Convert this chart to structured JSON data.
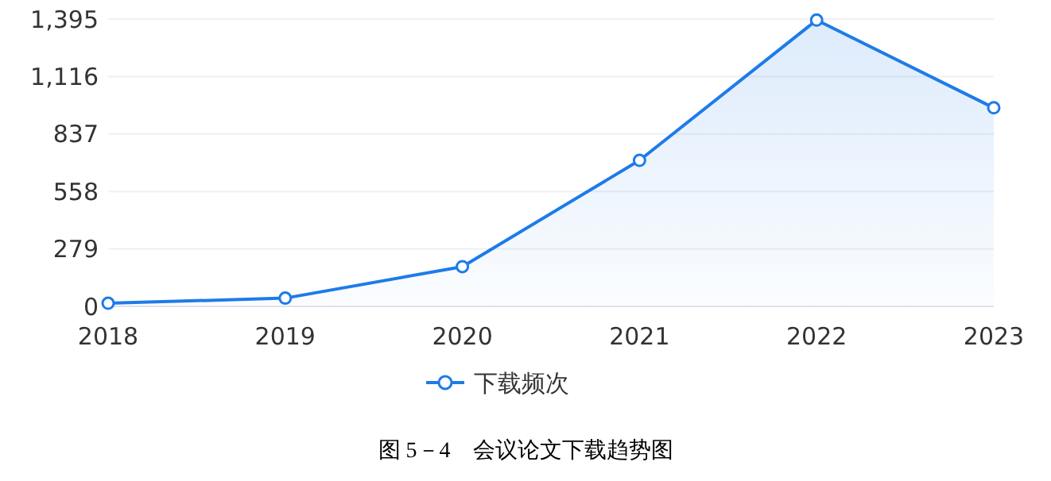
{
  "chart_data": {
    "type": "area",
    "categories": [
      "2018",
      "2019",
      "2020",
      "2021",
      "2022",
      "2023"
    ],
    "series": [
      {
        "name": "下载频次",
        "color": "#1e7be8",
        "values": [
          15,
          40,
          193,
          709,
          1390,
          964
        ]
      }
    ],
    "ylim": [
      0,
      1395
    ],
    "yticks": [
      0,
      {
        "value": 279,
        "label": "279"
      },
      {
        "value": 558,
        "label": "558"
      },
      {
        "value": 837,
        "label": "837"
      },
      {
        "value": 1116,
        "label": "1,116"
      },
      {
        "value": 1395,
        "label": "1,395"
      }
    ],
    "grid": "y",
    "marker": "circle",
    "line_style": "solid",
    "legend": "bottom",
    "annotations": [
      "图 5－4　会议论文下载趋势图"
    ]
  }
}
